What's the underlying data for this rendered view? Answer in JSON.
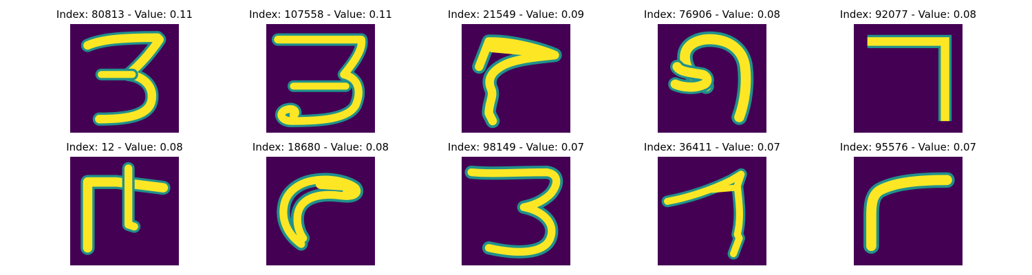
{
  "colors": {
    "background": "#440154",
    "stroke_outer": "#21918c",
    "stroke_mid": "#5ec962",
    "stroke_core": "#fde725"
  },
  "panels": [
    {
      "title": "Index: 80813 - Value: 0.11",
      "glyph": "three"
    },
    {
      "title": "Index: 107558 - Value: 0.11",
      "glyph": "three-loop"
    },
    {
      "title": "Index: 21549 - Value: 0.09",
      "glyph": "hook-arrow"
    },
    {
      "title": "Index: 76906 - Value: 0.08",
      "glyph": "curl"
    },
    {
      "title": "Index: 92077 - Value: 0.08",
      "glyph": "seven-corner"
    },
    {
      "title": "Index: 12 - Value: 0.08",
      "glyph": "f-shape"
    },
    {
      "title": "Index: 18680 - Value: 0.08",
      "glyph": "c-curve"
    },
    {
      "title": "Index: 98149 - Value: 0.07",
      "glyph": "three-wide"
    },
    {
      "title": "Index: 36411 - Value: 0.07",
      "glyph": "seven-slant"
    },
    {
      "title": "Index: 95576 - Value: 0.07",
      "glyph": "r-corner"
    }
  ]
}
